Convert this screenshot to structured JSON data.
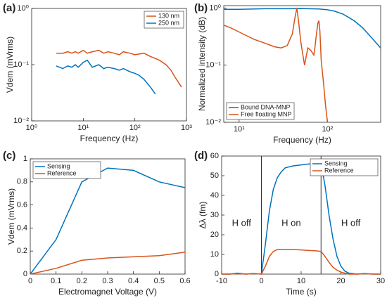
{
  "chart_data": [
    {
      "type": "line",
      "label": "(a)",
      "xlabel": "Frequency (Hz)",
      "ylabel": "Vdem (mVrms)",
      "xscale": "log",
      "yscale": "log",
      "xlim": [
        1,
        1000
      ],
      "ylim": [
        0.01,
        1
      ],
      "xticks": [
        {
          "value": 1,
          "label": "10⁰"
        },
        {
          "value": 10,
          "label": "10¹"
        },
        {
          "value": 100,
          "label": "10²"
        },
        {
          "value": 1000,
          "label": "10³"
        }
      ],
      "yticks": [
        {
          "value": 0.01,
          "label": "10⁻²"
        },
        {
          "value": 0.1,
          "label": "10⁻¹"
        },
        {
          "value": 1,
          "label": "10⁰"
        }
      ],
      "legend": "upper right",
      "series": [
        {
          "name": "130 nm",
          "color": "#d95319",
          "x": [
            3,
            4,
            5,
            6,
            7,
            8,
            10,
            12,
            15,
            20,
            25,
            30,
            40,
            50,
            60,
            80,
            100,
            150,
            200,
            300,
            400,
            500,
            600,
            800
          ],
          "values": [
            0.16,
            0.16,
            0.17,
            0.16,
            0.17,
            0.16,
            0.18,
            0.16,
            0.17,
            0.18,
            0.16,
            0.17,
            0.16,
            0.15,
            0.17,
            0.16,
            0.15,
            0.16,
            0.14,
            0.12,
            0.1,
            0.08,
            0.06,
            0.04
          ]
        },
        {
          "name": "250 nm",
          "color": "#0072bd",
          "x": [
            3,
            4,
            5,
            6,
            7,
            8,
            10,
            12,
            15,
            20,
            25,
            30,
            40,
            50,
            60,
            80,
            100,
            120,
            150,
            200,
            250
          ],
          "values": [
            0.095,
            0.085,
            0.095,
            0.09,
            0.1,
            0.09,
            0.11,
            0.12,
            0.09,
            0.1,
            0.085,
            0.09,
            0.085,
            0.08,
            0.085,
            0.075,
            0.07,
            0.065,
            0.055,
            0.04,
            0.03
          ]
        }
      ]
    },
    {
      "type": "line",
      "label": "(b)",
      "xlabel": "Frequency (Hz)",
      "ylabel": "Normalized intensity (dB)",
      "xscale": "log",
      "yscale": "log",
      "xlim": [
        6.7,
        400
      ],
      "ylim": [
        0.01,
        1.1
      ],
      "xticks": [
        {
          "value": 10,
          "label": "10¹"
        },
        {
          "value": 100,
          "label": "10²"
        }
      ],
      "yticks": [
        {
          "value": 0.01,
          "label": "10⁻²"
        },
        {
          "value": 0.1,
          "label": "10⁻¹"
        },
        {
          "value": 1,
          "label": "10⁰"
        }
      ],
      "legend": "lower left",
      "series": [
        {
          "name": "Bound DNA-MNP",
          "color": "#0072bd",
          "x": [
            6.7,
            8,
            10,
            15,
            20,
            30,
            40,
            50,
            60,
            80,
            100,
            120,
            150,
            200,
            250,
            300,
            400
          ],
          "values": [
            0.95,
            0.95,
            0.95,
            0.96,
            0.97,
            0.97,
            0.97,
            0.98,
            0.97,
            0.96,
            0.93,
            0.88,
            0.78,
            0.6,
            0.45,
            0.33,
            0.2
          ]
        },
        {
          "name": "Free floating MNP",
          "color": "#d95319",
          "x": [
            6.7,
            8,
            10,
            12,
            15,
            20,
            25,
            30,
            35,
            40,
            43,
            45,
            47,
            50,
            55,
            60,
            65,
            70,
            72,
            75,
            78,
            80,
            82,
            85,
            90,
            95,
            100
          ],
          "values": [
            0.5,
            0.45,
            0.38,
            0.33,
            0.28,
            0.24,
            0.21,
            0.2,
            0.22,
            0.35,
            0.7,
            1.0,
            0.6,
            0.25,
            0.1,
            0.2,
            0.18,
            0.15,
            0.2,
            0.35,
            0.55,
            0.6,
            0.4,
            0.12,
            0.05,
            0.02,
            0.01
          ]
        }
      ]
    },
    {
      "type": "line",
      "label": "(c)",
      "xlabel": "Electromagnet Voltage (V)",
      "ylabel": "Vdem (mVrms)",
      "xlim": [
        0,
        0.6
      ],
      "ylim": [
        0,
        1
      ],
      "xticks": [
        0,
        0.1,
        0.2,
        0.3,
        0.4,
        0.5,
        0.6
      ],
      "yticks": [
        0,
        0.2,
        0.4,
        0.6,
        0.8,
        1
      ],
      "legend": "upper left",
      "series": [
        {
          "name": "Sensing",
          "color": "#0072bd",
          "x": [
            0,
            0.1,
            0.2,
            0.3,
            0.4,
            0.5,
            0.6
          ],
          "values": [
            0,
            0.3,
            0.8,
            0.92,
            0.9,
            0.8,
            0.75
          ]
        },
        {
          "name": "Reference",
          "color": "#d95319",
          "x": [
            0,
            0.1,
            0.2,
            0.3,
            0.4,
            0.5,
            0.6
          ],
          "values": [
            0,
            0.05,
            0.12,
            0.14,
            0.15,
            0.16,
            0.19
          ]
        }
      ]
    },
    {
      "type": "line",
      "label": "(d)",
      "xlabel": "Time (s)",
      "ylabel": "Δλ (fm)",
      "xlim": [
        -10,
        30
      ],
      "ylim": [
        0,
        60
      ],
      "xticks": [
        -10,
        0,
        10,
        20,
        30
      ],
      "yticks": [
        0,
        10,
        20,
        30,
        40,
        50,
        60
      ],
      "legend": "upper right",
      "vlines": [
        0,
        15
      ],
      "annotations": [
        "H off",
        "H on",
        "H off"
      ],
      "series": [
        {
          "name": "Sensing",
          "color": "#0072bd",
          "x": [
            -10,
            -8,
            -6,
            -4,
            -2,
            0,
            1,
            2,
            3,
            4,
            5,
            6,
            8,
            10,
            12,
            14,
            15,
            16,
            17,
            18,
            19,
            20,
            21,
            22,
            24,
            26,
            28,
            30
          ],
          "values": [
            0,
            0,
            0.5,
            0,
            0.3,
            0,
            15,
            32,
            43,
            49,
            52,
            54,
            55,
            55.5,
            56,
            56,
            56,
            45,
            30,
            18,
            9,
            4,
            1.5,
            0.5,
            0,
            0.3,
            0,
            0
          ]
        },
        {
          "name": "Reference",
          "color": "#d95319",
          "x": [
            -10,
            -8,
            -6,
            -4,
            -2,
            0,
            1,
            2,
            3,
            4,
            5,
            6,
            8,
            10,
            12,
            14,
            15,
            16,
            17,
            18,
            19,
            20,
            21,
            22,
            24,
            26,
            28,
            30
          ],
          "values": [
            0,
            0,
            0.3,
            0,
            0.2,
            0,
            4,
            9,
            11.5,
            12.5,
            12.5,
            12.5,
            12.5,
            12.3,
            12,
            11.8,
            11.5,
            9,
            6,
            3.5,
            2,
            1,
            0.5,
            0,
            0,
            0.2,
            0,
            0
          ]
        }
      ]
    }
  ]
}
